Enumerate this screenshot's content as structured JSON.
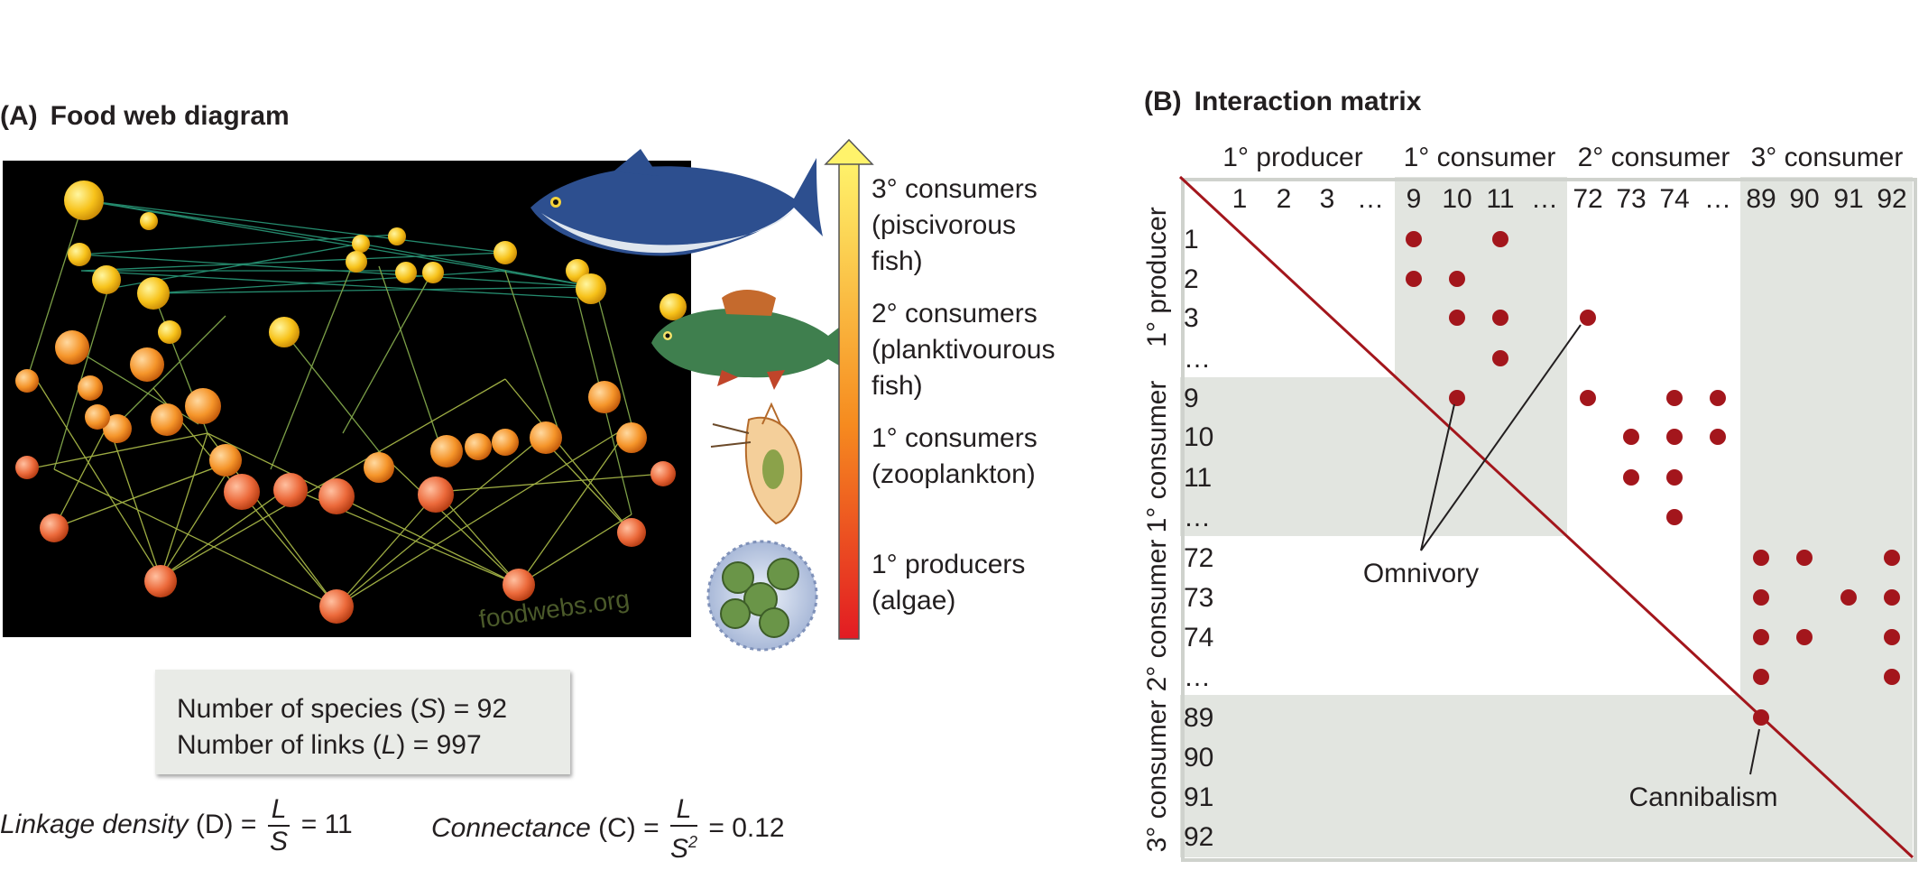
{
  "panel_a": {
    "label": "(A)",
    "title": "Food web diagram",
    "watermark": "foodwebs.org",
    "levels": [
      {
        "line1": "3° consumers",
        "line2": "(piscivorous",
        "line3": "fish)"
      },
      {
        "line1": "2° consumers",
        "line2": "(planktivourous",
        "line3": "fish)"
      },
      {
        "line1": "1° consumers",
        "line2": "(zooplankton)",
        "line3": ""
      },
      {
        "line1": "1° producers",
        "line2": "(algae)",
        "line3": ""
      }
    ],
    "info": {
      "species_prefix": "Number of species (",
      "species_var": "S",
      "species_suffix": ") = 92",
      "links_prefix": "Number of links (",
      "links_var": "L",
      "links_suffix": ") = 997"
    },
    "formulas": {
      "linkage_label": "Linkage density",
      "linkage_var": "(D)",
      "linkage_num": "L",
      "linkage_den": "S",
      "linkage_value": "= 11",
      "connectance_label": "Connectance",
      "connectance_var": "(C)",
      "connectance_num": "L",
      "connectance_den": "S",
      "connectance_exp": "2",
      "connectance_value": "= 0.12"
    }
  },
  "panel_b": {
    "label": "(B)",
    "title": "Interaction matrix",
    "groups": [
      "1° producer",
      "1° consumer",
      "2° consumer",
      "3° consumer"
    ],
    "columns": [
      "1",
      "2",
      "3",
      "…",
      "9",
      "10",
      "11",
      "…",
      "72",
      "73",
      "74",
      "…",
      "89",
      "90",
      "91",
      "92"
    ],
    "rows": [
      "1",
      "2",
      "3",
      "…",
      "9",
      "10",
      "11",
      "…",
      "72",
      "73",
      "74",
      "…",
      "89",
      "90",
      "91",
      "92"
    ],
    "interactions": [
      [
        0,
        4
      ],
      [
        0,
        6
      ],
      [
        1,
        4
      ],
      [
        1,
        5
      ],
      [
        2,
        5
      ],
      [
        2,
        6
      ],
      [
        2,
        8
      ],
      [
        3,
        6
      ],
      [
        4,
        5
      ],
      [
        4,
        8
      ],
      [
        4,
        10
      ],
      [
        4,
        11
      ],
      [
        5,
        9
      ],
      [
        5,
        10
      ],
      [
        5,
        11
      ],
      [
        6,
        9
      ],
      [
        6,
        10
      ],
      [
        7,
        10
      ],
      [
        8,
        12
      ],
      [
        8,
        13
      ],
      [
        8,
        15
      ],
      [
        9,
        12
      ],
      [
        9,
        14
      ],
      [
        9,
        15
      ],
      [
        10,
        12
      ],
      [
        10,
        13
      ],
      [
        10,
        15
      ],
      [
        11,
        12
      ],
      [
        11,
        15
      ],
      [
        12,
        12
      ]
    ],
    "annotations": {
      "omnivory": "Omnivory",
      "cannibalism": "Cannibalism"
    },
    "colors": {
      "dot": "#a3161c",
      "diagonal": "#a3161c",
      "shade": "#e2e5e0"
    }
  }
}
